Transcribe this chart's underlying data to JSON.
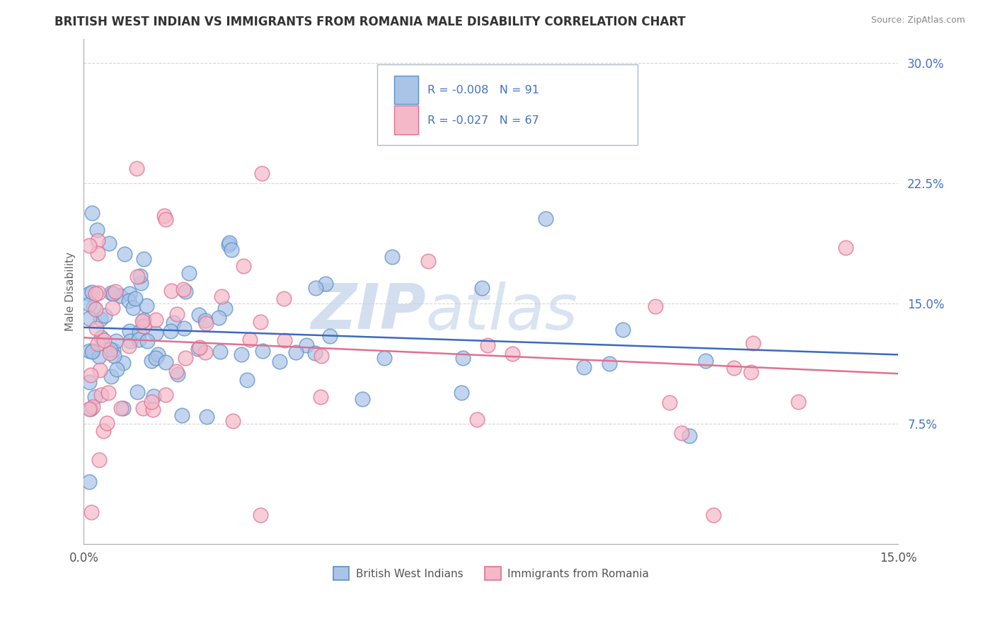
{
  "title": "BRITISH WEST INDIAN VS IMMIGRANTS FROM ROMANIA MALE DISABILITY CORRELATION CHART",
  "source": "Source: ZipAtlas.com",
  "ylabel": "Male Disability",
  "xlim": [
    0.0,
    0.15
  ],
  "ylim": [
    0.0,
    0.315
  ],
  "yticks": [
    0.0,
    0.075,
    0.15,
    0.225,
    0.3
  ],
  "ytick_labels": [
    "",
    "7.5%",
    "15.0%",
    "22.5%",
    "30.0%"
  ],
  "xtick_labels": [
    "0.0%",
    "15.0%"
  ],
  "series1": {
    "label": "British West Indians",
    "color": "#aac4e8",
    "edge_color": "#5a8fc8",
    "R": -0.008,
    "N": 91,
    "trend_color": "#3a6abf"
  },
  "series2": {
    "label": "Immigrants from Romania",
    "color": "#f5b8c8",
    "edge_color": "#e07090",
    "R": -0.027,
    "N": 67,
    "trend_color": "#e07090"
  },
  "watermark_zip": "ZIP",
  "watermark_atlas": "atlas",
  "background_color": "#ffffff",
  "grid_color": "#cccccc",
  "title_color": "#333333",
  "axis_label_color": "#666666"
}
